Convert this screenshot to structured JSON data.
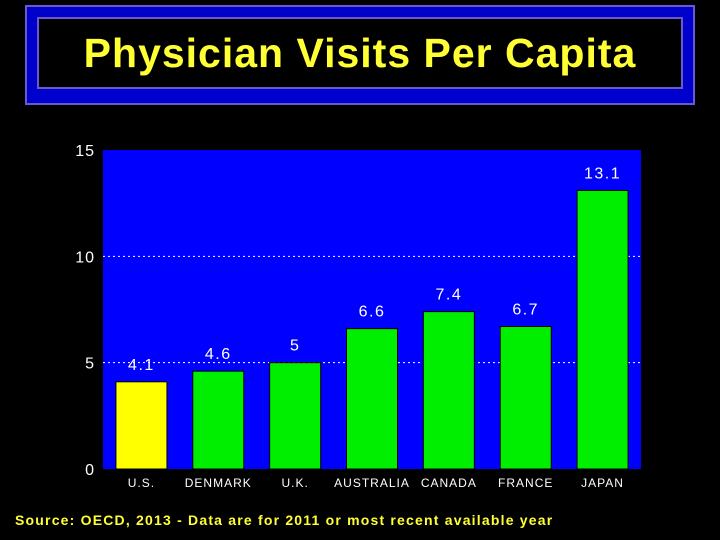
{
  "title": "Physician Visits Per Capita",
  "source": "Source: OECD, 2013 - Data are for 2011 or most recent available year",
  "colors": {
    "background": "#000000",
    "plot_bg": "#0000ff",
    "title_text": "#ffff33",
    "highlight_bar": "#ffff00",
    "bar": "#00ee00",
    "axis_text": "#ffffff"
  },
  "chart_data": {
    "type": "bar",
    "title": "Physician Visits Per Capita",
    "categories": [
      "U.S.",
      "DENMARK",
      "U.K.",
      "AUSTRALIA",
      "CANADA",
      "FRANCE",
      "JAPAN"
    ],
    "values": [
      4.1,
      4.6,
      5,
      6.6,
      7.4,
      6.7,
      13.1
    ],
    "value_labels": [
      "4.1",
      "4.6",
      "5",
      "6.6",
      "7.4",
      "6.7",
      "13.1"
    ],
    "highlight_index": 0,
    "ylim": [
      0,
      15
    ],
    "yticks": [
      0,
      5,
      10,
      15
    ],
    "ytick_labels": [
      "0",
      "5",
      "10",
      "15"
    ],
    "grid": "dotted at 5 and 10",
    "xlabel": "",
    "ylabel": ""
  }
}
